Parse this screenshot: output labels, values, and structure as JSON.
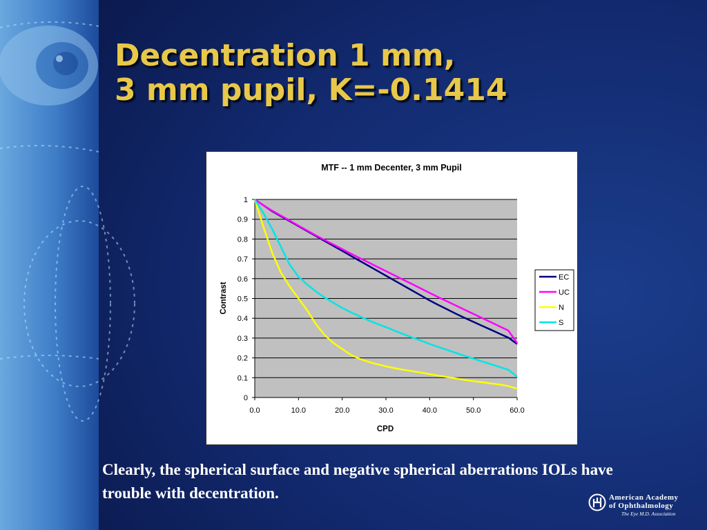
{
  "slide": {
    "title_line1": "Decentration 1 mm,",
    "title_line2": "3 mm pupil, K=-0.1414",
    "caption": "Clearly, the spherical surface and negative spherical aberrations IOLs have trouble with decentration.",
    "logo": {
      "line1": "American Academy",
      "line2": "of Ophthalmology",
      "tagline": "The Eye M.D. Association"
    },
    "colors": {
      "background": "#0d1f5c",
      "title": "#e8c84a",
      "caption": "#ffffff"
    }
  },
  "chart_data": {
    "type": "line",
    "title": "MTF -- 1 mm Decenter, 3 mm Pupil",
    "xlabel": "CPD",
    "ylabel": "Contrast",
    "xlim": [
      0,
      60
    ],
    "ylim": [
      0,
      1
    ],
    "x_ticks": [
      "0.0",
      "10.0",
      "20.0",
      "30.0",
      "40.0",
      "50.0",
      "60.0"
    ],
    "y_ticks": [
      "0",
      "0.1",
      "0.2",
      "0.3",
      "0.4",
      "0.5",
      "0.6",
      "0.7",
      "0.8",
      "0.9",
      "1"
    ],
    "grid": "horizontal",
    "plot_background": "#c0c0c0",
    "legend_position": "right",
    "x": [
      0,
      2,
      4,
      6,
      8,
      10,
      12,
      14,
      16,
      18,
      20,
      22,
      24,
      26,
      28,
      30,
      32,
      34,
      36,
      38,
      40,
      42,
      44,
      46,
      48,
      50,
      52,
      54,
      56,
      58,
      60
    ],
    "series": [
      {
        "name": "EC",
        "color": "#000080",
        "values": [
          1.0,
          0.97,
          0.94,
          0.915,
          0.89,
          0.865,
          0.84,
          0.815,
          0.79,
          0.765,
          0.74,
          0.715,
          0.69,
          0.665,
          0.64,
          0.615,
          0.59,
          0.565,
          0.54,
          0.515,
          0.49,
          0.467,
          0.445,
          0.423,
          0.402,
          0.382,
          0.362,
          0.342,
          0.322,
          0.302,
          0.27
        ]
      },
      {
        "name": "UC",
        "color": "#ff00ff",
        "values": [
          1.0,
          0.97,
          0.943,
          0.918,
          0.893,
          0.868,
          0.843,
          0.818,
          0.795,
          0.772,
          0.749,
          0.726,
          0.704,
          0.682,
          0.66,
          0.638,
          0.616,
          0.594,
          0.572,
          0.55,
          0.528,
          0.506,
          0.485,
          0.464,
          0.443,
          0.422,
          0.401,
          0.38,
          0.359,
          0.338,
          0.275
        ]
      },
      {
        "name": "N",
        "color": "#ffff00",
        "values": [
          1.0,
          0.86,
          0.73,
          0.63,
          0.56,
          0.5,
          0.44,
          0.37,
          0.315,
          0.275,
          0.245,
          0.215,
          0.195,
          0.18,
          0.168,
          0.157,
          0.148,
          0.14,
          0.133,
          0.126,
          0.118,
          0.11,
          0.103,
          0.096,
          0.089,
          0.083,
          0.077,
          0.071,
          0.065,
          0.058,
          0.045
        ]
      },
      {
        "name": "S",
        "color": "#00e5e5",
        "values": [
          1.0,
          0.93,
          0.85,
          0.76,
          0.67,
          0.61,
          0.57,
          0.535,
          0.505,
          0.478,
          0.452,
          0.43,
          0.41,
          0.39,
          0.372,
          0.355,
          0.337,
          0.32,
          0.303,
          0.287,
          0.27,
          0.255,
          0.24,
          0.225,
          0.21,
          0.196,
          0.182,
          0.168,
          0.154,
          0.14,
          0.105
        ]
      }
    ]
  }
}
